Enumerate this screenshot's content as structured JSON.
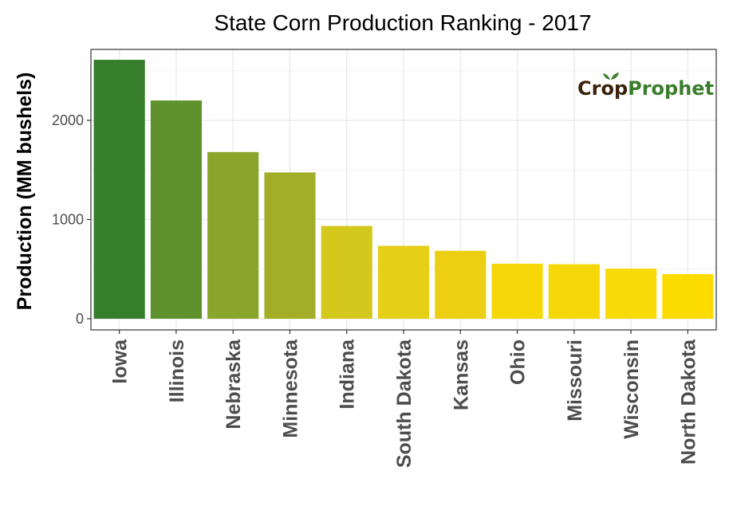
{
  "chart_data": {
    "type": "bar",
    "title": "State Corn Production Ranking - 2017",
    "xlabel": "",
    "ylabel": "Production (MM bushels)",
    "categories": [
      "Iowa",
      "Illinois",
      "Nebraska",
      "Minnesota",
      "Indiana",
      "South Dakota",
      "Kansas",
      "Ohio",
      "Missouri",
      "Wisconsin",
      "North Dakota"
    ],
    "values": [
      2610,
      2200,
      1680,
      1475,
      935,
      735,
      685,
      555,
      550,
      505,
      450
    ],
    "colors": [
      "#367d2c",
      "#5e922d",
      "#8aa52b",
      "#a3ae28",
      "#d4c81c",
      "#e5cf17",
      "#eccf12",
      "#f6d809",
      "#f6d809",
      "#f7da07",
      "#fcdc00"
    ],
    "ylim": [
      0,
      2700
    ],
    "yticks": [
      0,
      1000,
      2000
    ],
    "grid": true,
    "legend": "none"
  },
  "logo": {
    "brand_part1": "Crop",
    "brand_part2": "Prophet"
  }
}
